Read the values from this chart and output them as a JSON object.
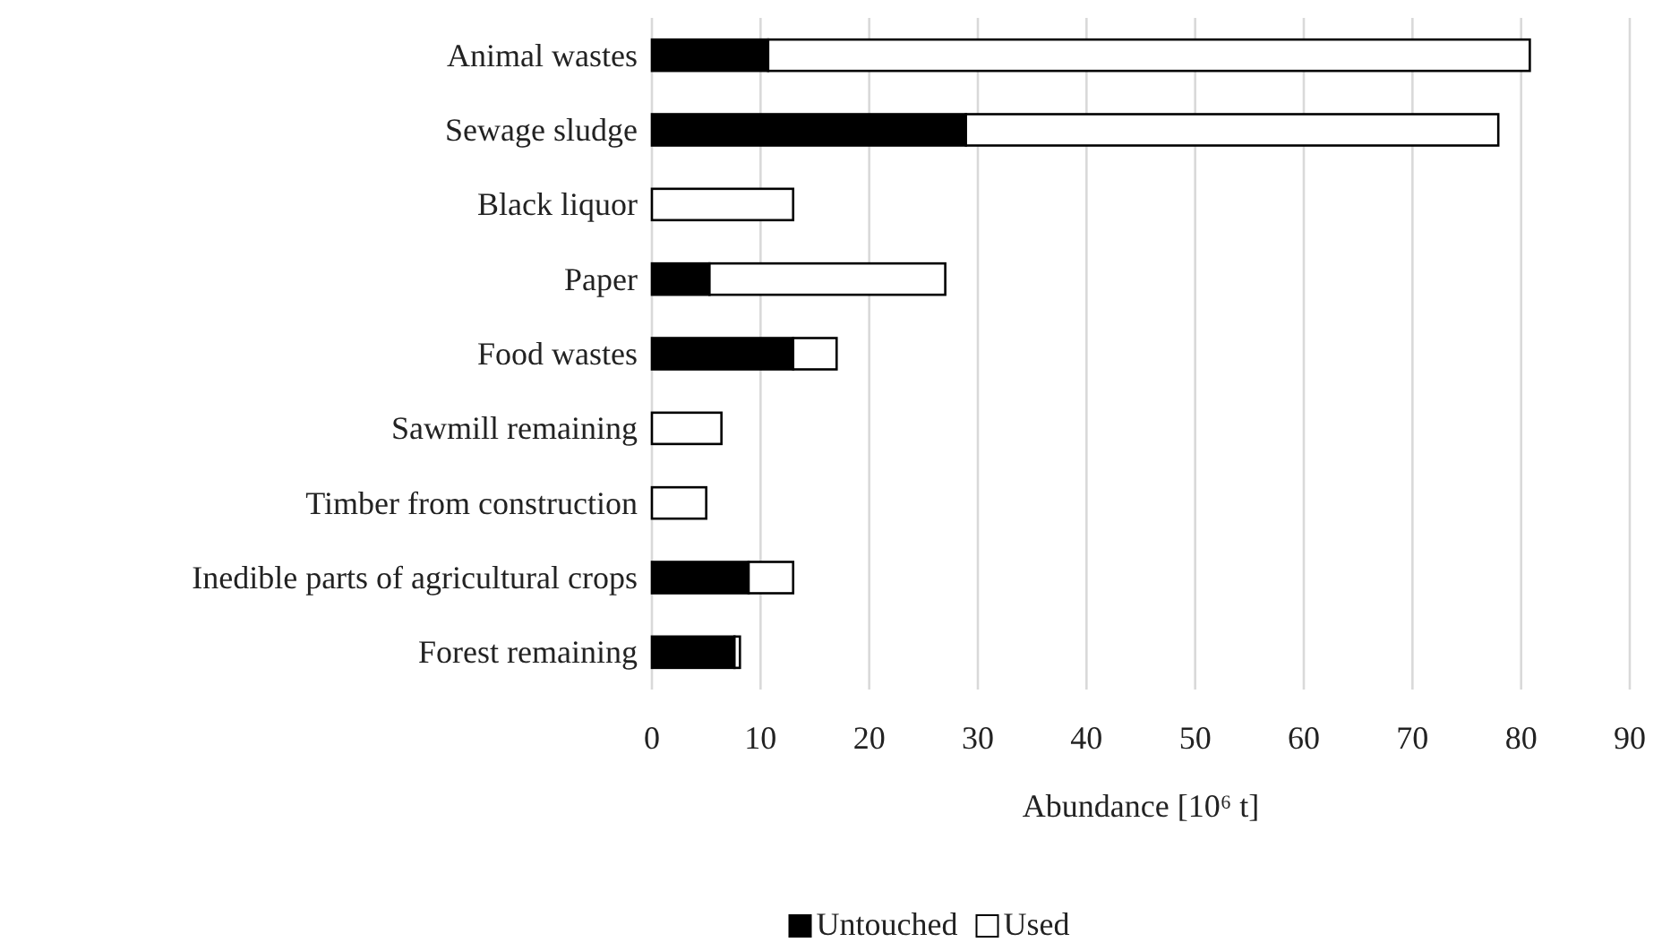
{
  "chart_data": {
    "type": "bar",
    "orientation": "horizontal",
    "stacked": true,
    "xlabel": "Abundance [10⁶ t]",
    "categories": [
      "Animal wastes",
      "Sewage sludge",
      "Black liquor",
      "Paper",
      "Food wastes",
      "Sawmill remaining",
      "Timber from construction",
      "Inedible parts of agricultural crops",
      "Forest remaining"
    ],
    "series": [
      {
        "name": "Untouched",
        "color": "#000000",
        "values": [
          10.7,
          28.9,
          0,
          5.3,
          13.0,
          0,
          0,
          8.9,
          7.6
        ]
      },
      {
        "name": "Used",
        "color": "#ffffff",
        "values": [
          70.1,
          49.0,
          13.0,
          21.7,
          4.0,
          6.4,
          5.0,
          4.1,
          0.5
        ]
      }
    ],
    "xlim": [
      0,
      90
    ],
    "xticks": [
      0,
      10,
      20,
      30,
      40,
      50,
      60,
      70,
      80,
      90
    ],
    "grid": "x",
    "legend": "bottom"
  }
}
